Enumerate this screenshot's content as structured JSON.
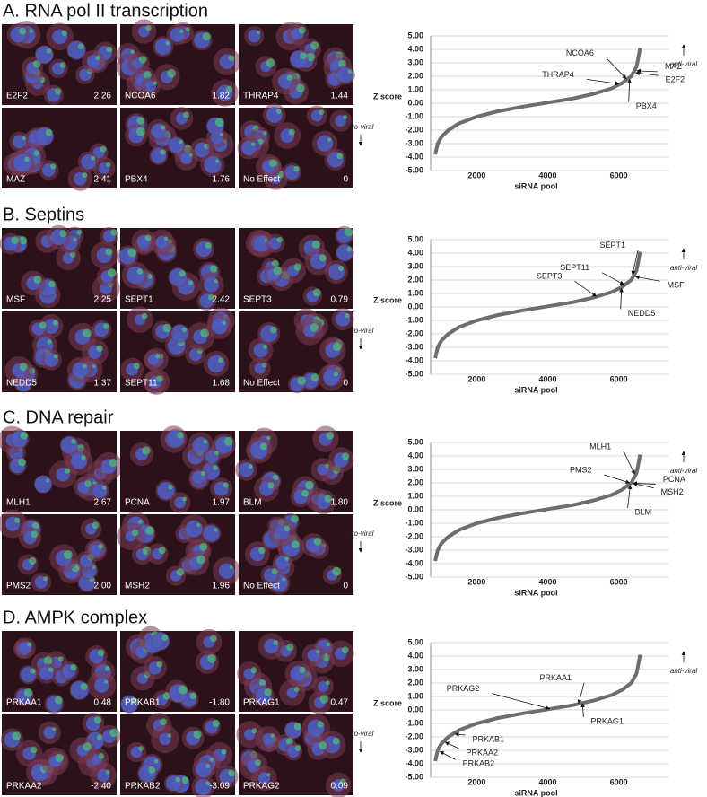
{
  "panels": [
    {
      "title": "A. RNA pol II transcription",
      "images": [
        {
          "label": "E2F2",
          "value": 2.26
        },
        {
          "label": "NCOA6",
          "value": 1.82
        },
        {
          "label": "THRAP4",
          "value": 1.44
        },
        {
          "label": "MAZ",
          "value": 2.41
        },
        {
          "label": "PBX4",
          "value": 1.76
        },
        {
          "label": "No Effect",
          "value": 0
        }
      ],
      "chart": {
        "type": "line",
        "y_label": "Z score",
        "x_label": "siRNA pool",
        "up_label": "anti-viral",
        "down_label": "pro-viral",
        "color": "#6d6d6d",
        "x": [
          830,
          900,
          1000,
          1200,
          1500,
          2000,
          2600,
          3300,
          4000,
          4700,
          5300,
          5800,
          6100,
          6350,
          6500,
          6560,
          6600
        ],
        "values": [
          -3.8,
          -3.0,
          -2.5,
          -2.0,
          -1.5,
          -1.0,
          -0.6,
          -0.25,
          0.05,
          0.35,
          0.7,
          1.1,
          1.5,
          2.0,
          2.7,
          3.5,
          4.1
        ],
        "xlim": [
          700,
          7400
        ],
        "ylim": [
          -5,
          5
        ],
        "xticks": [
          2000,
          4000,
          6000
        ],
        "yticks": [
          {
            "value": -5,
            "label": "-5.00"
          },
          {
            "value": -4,
            "label": "-4.00"
          },
          {
            "value": -3,
            "label": "-3.00"
          },
          {
            "value": -2,
            "label": "-2.00"
          },
          {
            "value": -1,
            "label": "-1.00"
          },
          {
            "value": 0,
            "label": "0.00"
          },
          {
            "value": 1,
            "label": "1.00"
          },
          {
            "value": 2,
            "label": "2.00"
          },
          {
            "value": 3,
            "label": "3.00"
          },
          {
            "value": 4,
            "label": "4.00"
          },
          {
            "value": 5,
            "label": "5.00"
          }
        ],
        "grid": true,
        "annotations": [
          {
            "text": "NCOA6",
            "value": 1.82
          },
          {
            "text": "THRAP4",
            "value": 1.44
          },
          {
            "text": "MAZ",
            "value": 2.41
          },
          {
            "text": "E2F2",
            "value": 2.26
          },
          {
            "text": "PBX4",
            "value": 1.76
          }
        ]
      }
    },
    {
      "title": "B. Septins",
      "images": [
        {
          "label": "MSF",
          "value": 2.25
        },
        {
          "label": "SEPT1",
          "value": 2.42
        },
        {
          "label": "SEPT3",
          "value": 0.79
        },
        {
          "label": "NEDD5",
          "value": 1.37
        },
        {
          "label": "SEPT11",
          "value": 1.68
        },
        {
          "label": "No Effect",
          "value": 0
        }
      ],
      "chart": {
        "type": "line",
        "y_label": "Z score",
        "x_label": "siRNA pool",
        "up_label": "anti-viral",
        "down_label": "pro-viral",
        "color": "#6d6d6d",
        "x": [
          830,
          900,
          1000,
          1200,
          1500,
          2000,
          2600,
          3300,
          4000,
          4700,
          5300,
          5800,
          6100,
          6350,
          6500,
          6560,
          6600
        ],
        "values": [
          -3.8,
          -3.0,
          -2.5,
          -2.0,
          -1.5,
          -1.0,
          -0.6,
          -0.25,
          0.05,
          0.35,
          0.7,
          1.1,
          1.5,
          2.0,
          2.7,
          3.5,
          4.1
        ],
        "xlim": [
          700,
          7400
        ],
        "ylim": [
          -5,
          5
        ],
        "xticks": [
          2000,
          4000,
          6000
        ],
        "yticks": [
          {
            "value": -5,
            "label": "-5.00"
          },
          {
            "value": -4,
            "label": "-4.00"
          },
          {
            "value": -3,
            "label": "-3.00"
          },
          {
            "value": -2,
            "label": "-2.00"
          },
          {
            "value": -1,
            "label": "-1.00"
          },
          {
            "value": 0,
            "label": "0.00"
          },
          {
            "value": 1,
            "label": "1.00"
          },
          {
            "value": 2,
            "label": "2.00"
          },
          {
            "value": 3,
            "label": "3.00"
          },
          {
            "value": 4,
            "label": "4.00"
          },
          {
            "value": 5,
            "label": "5.00"
          }
        ],
        "grid": true,
        "annotations": [
          {
            "text": "SEPT1",
            "value": 2.42
          },
          {
            "text": "SEPT11",
            "value": 1.68
          },
          {
            "text": "SEPT3",
            "value": 0.79
          },
          {
            "text": "MSF",
            "value": 2.25
          },
          {
            "text": "NEDD5",
            "value": 1.37
          }
        ]
      }
    },
    {
      "title": "C. DNA repair",
      "images": [
        {
          "label": "MLH1",
          "value": 2.67
        },
        {
          "label": "PCNA",
          "value": 1.97
        },
        {
          "label": "BLM",
          "value": 1.8,
          "value_label": "1.80"
        },
        {
          "label": "PMS2",
          "value": 2,
          "value_label": "2.00"
        },
        {
          "label": "MSH2",
          "value": 1.96
        },
        {
          "label": "No Effect",
          "value": 0
        }
      ],
      "chart": {
        "type": "line",
        "y_label": "Z score",
        "x_label": "siRNA pool",
        "up_label": "anti-viral",
        "down_label": "pro-viral",
        "color": "#6d6d6d",
        "x": [
          830,
          900,
          1000,
          1200,
          1500,
          2000,
          2600,
          3300,
          4000,
          4700,
          5300,
          5800,
          6100,
          6350,
          6500,
          6560,
          6600
        ],
        "values": [
          -3.8,
          -3.0,
          -2.5,
          -2.0,
          -1.5,
          -1.0,
          -0.6,
          -0.25,
          0.05,
          0.35,
          0.7,
          1.1,
          1.5,
          2.0,
          2.7,
          3.5,
          4.1
        ],
        "xlim": [
          700,
          7400
        ],
        "ylim": [
          -5,
          5
        ],
        "xticks": [
          2000,
          4000,
          6000
        ],
        "yticks": [
          {
            "value": -5,
            "label": "-5.00"
          },
          {
            "value": -4,
            "label": "-4.00"
          },
          {
            "value": -3,
            "label": "-3.00"
          },
          {
            "value": -2,
            "label": "-2.00"
          },
          {
            "value": -1,
            "label": "-1.00"
          },
          {
            "value": 0,
            "label": "0.00"
          },
          {
            "value": 1,
            "label": "1.00"
          },
          {
            "value": 2,
            "label": "2.00"
          },
          {
            "value": 3,
            "label": "3.00"
          },
          {
            "value": 4,
            "label": "4.00"
          },
          {
            "value": 5,
            "label": "5.00"
          }
        ],
        "grid": true,
        "annotations": [
          {
            "text": "MLH1",
            "value": 2.67
          },
          {
            "text": "PMS2",
            "value": 2
          },
          {
            "text": "PCNA",
            "value": 1.97
          },
          {
            "text": "MSH2",
            "value": 1.96
          },
          {
            "text": "BLM",
            "value": 1.8
          }
        ]
      }
    },
    {
      "title": "D. AMPK complex",
      "images": [
        {
          "label": "PRKAA1",
          "value": 0.48
        },
        {
          "label": "PRKAB1",
          "value": -1.8,
          "value_label": "-1.80"
        },
        {
          "label": "PRKAG1",
          "value": 0.47
        },
        {
          "label": "PRKAA2",
          "value": -2.4,
          "value_label": "-2.40"
        },
        {
          "label": "PRKAB2",
          "value": -3.09
        },
        {
          "label": "PRKAG2",
          "value": 0.09
        }
      ],
      "chart": {
        "type": "line",
        "y_label": "Z score",
        "x_label": "siRNA pool",
        "up_label": "anti-viral",
        "down_label": "pro-viral",
        "color": "#6d6d6d",
        "x": [
          830,
          900,
          1000,
          1200,
          1500,
          2000,
          2600,
          3300,
          4000,
          4700,
          5300,
          5800,
          6100,
          6350,
          6500,
          6560,
          6600
        ],
        "values": [
          -3.8,
          -3.0,
          -2.5,
          -2.0,
          -1.5,
          -1.0,
          -0.6,
          -0.25,
          0.05,
          0.35,
          0.7,
          1.1,
          1.5,
          2.0,
          2.7,
          3.5,
          4.1
        ],
        "xlim": [
          700,
          7400
        ],
        "ylim": [
          -5,
          5
        ],
        "xticks": [
          2000,
          4000,
          6000
        ],
        "yticks": [
          {
            "value": -5,
            "label": "-5.00"
          },
          {
            "value": -4,
            "label": "-4.00"
          },
          {
            "value": -3,
            "label": "-3.00"
          },
          {
            "value": -2,
            "label": "-2.00"
          },
          {
            "value": -1,
            "label": "-1.00"
          },
          {
            "value": 0,
            "label": "0.00"
          },
          {
            "value": 1,
            "label": "1.00"
          },
          {
            "value": 2,
            "label": "2.00"
          },
          {
            "value": 3,
            "label": "3.00"
          },
          {
            "value": 4,
            "label": "4.00"
          },
          {
            "value": 5,
            "label": "5.00"
          }
        ],
        "grid": true,
        "annotations": [
          {
            "text": "PRKAA1",
            "value": 0.48
          },
          {
            "text": "PRKAG2",
            "value": 0.09
          },
          {
            "text": "PRKAG1",
            "value": 0.47
          },
          {
            "text": "PRKAB1",
            "value": -1.8
          },
          {
            "text": "PRKAA2",
            "value": -2.4
          },
          {
            "text": "PRKAB2",
            "value": -3.09
          }
        ]
      }
    }
  ]
}
